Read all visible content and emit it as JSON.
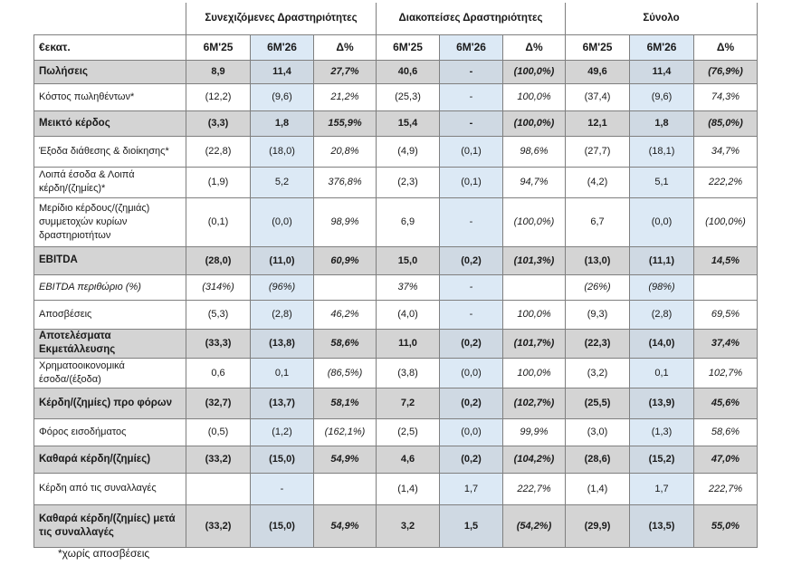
{
  "groups": {
    "continuing": "Συνεχιζόμενες Δραστηριότητες",
    "discontinued": "Διακοπείσες Δραστηριότητες",
    "total": "Σύνολο"
  },
  "columns": {
    "label": "€εκατ.",
    "cells": [
      "6M'25",
      "6M'26",
      "Δ%",
      "6M'25",
      "6M'26",
      "Δ%",
      "6M'25",
      "6M'26",
      "Δ%"
    ]
  },
  "rows": [
    {
      "label": "Πωλήσεις",
      "bold": true,
      "cells": [
        "8,9",
        "11,4",
        "27,7%",
        "40,6",
        "-",
        "(100,0%)",
        "49,6",
        "11,4",
        "(76,9%)"
      ]
    },
    {
      "label": "Κόστος πωληθέντων*",
      "bold": false,
      "cells": [
        "(12,2)",
        "(9,6)",
        "21,2%",
        "(25,3)",
        "-",
        "100,0%",
        "(37,4)",
        "(9,6)",
        "74,3%"
      ]
    },
    {
      "label": "Μεικτό κέρδος",
      "bold": true,
      "cells": [
        "(3,3)",
        "1,8",
        "155,9%",
        "15,4",
        "-",
        "(100,0%)",
        "12,1",
        "1,8",
        "(85,0%)"
      ]
    },
    {
      "label": "Έξοδα διάθεσης & διοίκησης*",
      "bold": false,
      "cells": [
        "(22,8)",
        "(18,0)",
        "20,8%",
        "(4,9)",
        "(0,1)",
        "98,6%",
        "(27,7)",
        "(18,1)",
        "34,7%"
      ]
    },
    {
      "label": "Λοιπά έσοδα & Λοιπά κέρδη/(ζημίες)*",
      "bold": false,
      "cells": [
        "(1,9)",
        "5,2",
        "376,8%",
        "(2,3)",
        "(0,1)",
        "94,7%",
        "(4,2)",
        "5,1",
        "222,2%"
      ]
    },
    {
      "label": "Μερίδιο κέρδους/(ζημιάς) συμμετοχών κυρίων δραστηριοτήτων",
      "bold": false,
      "cells": [
        "(0,1)",
        "(0,0)",
        "98,9%",
        "6,9",
        "-",
        "(100,0%)",
        "6,7",
        "(0,0)",
        "(100,0%)"
      ]
    },
    {
      "label": "EBITDA",
      "bold": true,
      "cells": [
        "(28,0)",
        "(11,0)",
        "60,9%",
        "15,0",
        "(0,2)",
        "(101,3%)",
        "(13,0)",
        "(11,1)",
        "14,5%"
      ]
    },
    {
      "label": "EBITDA περιθώριο (%)",
      "bold": false,
      "italic": true,
      "cells": [
        "(314%)",
        "(96%)",
        "",
        "37%",
        "-",
        "",
        "(26%)",
        "(98%)",
        ""
      ]
    },
    {
      "label": "Αποσβέσεις",
      "bold": false,
      "cells": [
        "(5,3)",
        "(2,8)",
        "46,2%",
        "(4,0)",
        "-",
        "100,0%",
        "(9,3)",
        "(2,8)",
        "69,5%"
      ]
    },
    {
      "label": "Αποτελέσματα Εκμετάλλευσης",
      "bold": true,
      "cells": [
        "(33,3)",
        "(13,8)",
        "58,6%",
        "11,0",
        "(0,2)",
        "(101,7%)",
        "(22,3)",
        "(14,0)",
        "37,4%"
      ]
    },
    {
      "label": "Χρηματοοικονομικά έσοδα/(έξοδα)",
      "bold": false,
      "cells": [
        "0,6",
        "0,1",
        "(86,5%)",
        "(3,8)",
        "(0,0)",
        "100,0%",
        "(3,2)",
        "0,1",
        "102,7%"
      ]
    },
    {
      "label": "Κέρδη/(ζημίες) προ φόρων",
      "bold": true,
      "cells": [
        "(32,7)",
        "(13,7)",
        "58,1%",
        "7,2",
        "(0,2)",
        "(102,7%)",
        "(25,5)",
        "(13,9)",
        "45,6%"
      ]
    },
    {
      "label": "Φόρος εισοδήματος",
      "bold": false,
      "cells": [
        "(0,5)",
        "(1,2)",
        "(162,1%)",
        "(2,5)",
        "(0,0)",
        "99,9%",
        "(3,0)",
        "(1,3)",
        "58,6%"
      ]
    },
    {
      "label": "Καθαρά κέρδη/(ζημίες)",
      "bold": true,
      "cells": [
        "(33,2)",
        "(15,0)",
        "54,9%",
        "4,6",
        "(0,2)",
        "(104,2%)",
        "(28,6)",
        "(15,2)",
        "47,0%"
      ]
    },
    {
      "label": "Κέρδη από τις συναλλαγές",
      "bold": false,
      "cells": [
        "",
        "-",
        "",
        "(1,4)",
        "1,7",
        "222,7%",
        "(1,4)",
        "1,7",
        "222,7%"
      ]
    },
    {
      "label": "Καθαρά κέρδη/(ζημίες) μετά τις συναλλαγές",
      "bold": true,
      "cells": [
        "(33,2)",
        "(15,0)",
        "54,9%",
        "3,2",
        "1,5",
        "(54,2%)",
        "(29,9)",
        "(13,5)",
        "55,0%"
      ]
    }
  ],
  "footnote": "*χωρίς αποσβέσεις"
}
